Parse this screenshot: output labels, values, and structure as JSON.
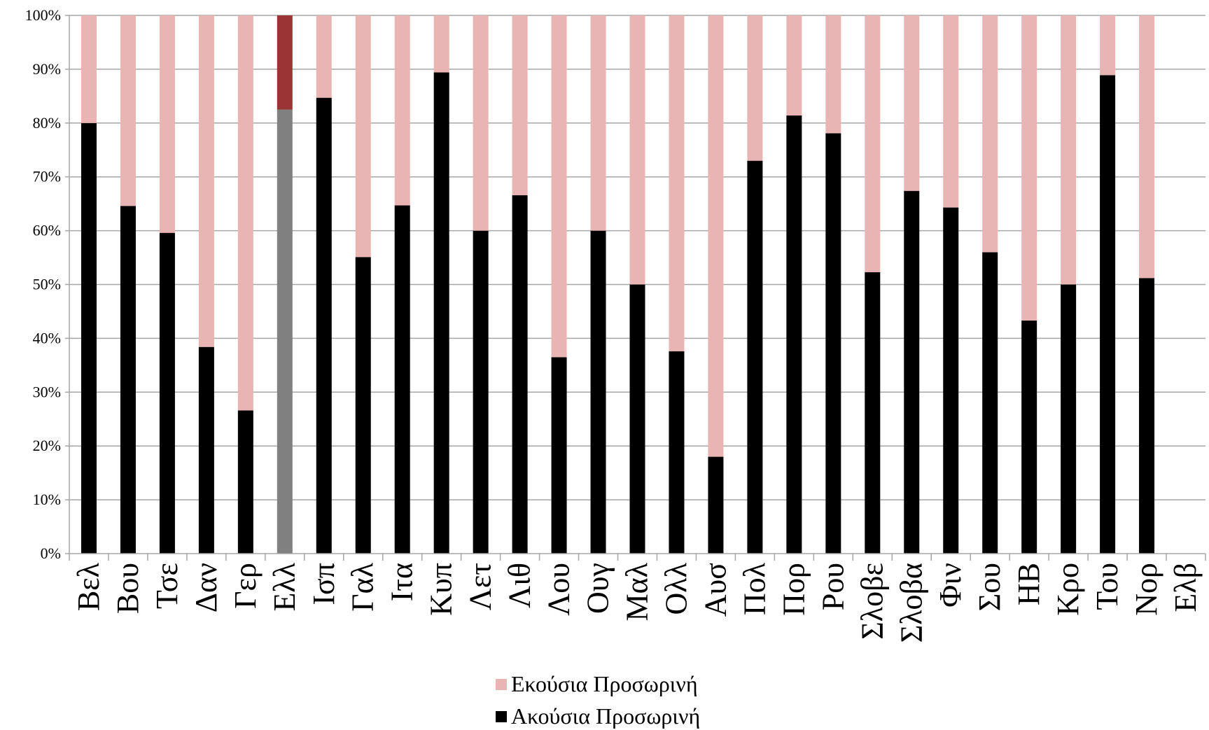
{
  "chart_data": {
    "type": "bar",
    "stacked": true,
    "percent_stacked": true,
    "categories": [
      "Βελ",
      "Βου",
      "Τσε",
      "Δαν",
      "Γερ",
      "Ελλ",
      "Ισπ",
      "Γαλ",
      "Ιτα",
      "Κυπ",
      "Λετ",
      "Λιθ",
      "Λου",
      "Ουγ",
      "Μαλ",
      "Ολλ",
      "Αυσ",
      "Πολ",
      "Πορ",
      "Ρου",
      "Σλοβε",
      "Σλοβα",
      "Φιν",
      "Σου",
      "ΗΒ",
      "Κρο",
      "Του",
      "Nορ",
      "Ελβ"
    ],
    "series": [
      {
        "name": "Ακούσια Προσωρινή",
        "values": [
          80,
          64.6,
          59.6,
          38.4,
          26.6,
          82.5,
          84.7,
          55.1,
          64.7,
          89.4,
          60,
          66.6,
          36.5,
          60,
          50,
          37.6,
          18,
          73,
          81.4,
          78.1,
          52.3,
          67.4,
          64.3,
          56,
          43.3,
          50,
          88.9,
          51.2,
          null
        ]
      },
      {
        "name": "Εκούσια Προσωρινή",
        "values": [
          20,
          35.4,
          40.4,
          61.6,
          73.4,
          17.5,
          15.3,
          44.9,
          35.3,
          10.6,
          40,
          33.4,
          63.5,
          40,
          50,
          62.4,
          82,
          27,
          18.6,
          21.9,
          47.7,
          32.6,
          35.7,
          44,
          56.7,
          50,
          11.1,
          48.8,
          null
        ]
      }
    ],
    "ylim": [
      0,
      100
    ],
    "yticks": [
      "0%",
      "10%",
      "20%",
      "30%",
      "40%",
      "50%",
      "60%",
      "70%",
      "80%",
      "90%",
      "100%"
    ],
    "grid": true,
    "legend_position": "bottom",
    "colors": {
      "involuntary": "#000000",
      "voluntary": "#e8b4b4",
      "highlight_involuntary": "#808080",
      "highlight_voluntary": "#9b3535",
      "grid": "#a6a6a6",
      "axis": "#a6a6a6"
    },
    "highlight_category": "Ελλ"
  }
}
